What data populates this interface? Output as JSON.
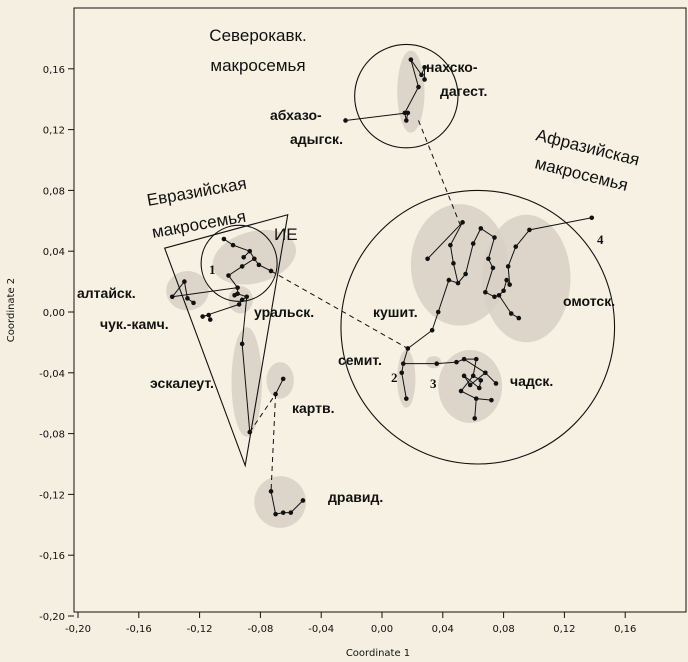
{
  "chart_data": {
    "type": "scatter",
    "xlabel": "Coordinate 1",
    "ylabel": "Coordinate 2",
    "xlim": [
      -0.2,
      0.2
    ],
    "ylim": [
      -0.2,
      0.2
    ],
    "x_ticks": [
      "-0,20",
      "-0,16",
      "-0,12",
      "-0,08",
      "-0,04",
      "0,00",
      "0,04",
      "0,08",
      "0,12",
      "0,16"
    ],
    "y_ticks": [
      "0,16",
      "0,12",
      "0,08",
      "0,04",
      "0,00",
      "-0,04",
      "-0,08",
      "-0,12",
      "-0,16",
      "-0,20"
    ],
    "x_tick_values": [
      -0.2,
      -0.16,
      -0.12,
      -0.08,
      -0.04,
      0,
      0.04,
      0.08,
      0.12,
      0.16
    ],
    "y_tick_values": [
      0.16,
      0.12,
      0.08,
      0.04,
      0,
      -0.04,
      -0.08,
      -0.12,
      -0.16,
      -0.2
    ],
    "grid": false,
    "macrofamilies": [
      {
        "label": "Северокавк. макросемья",
        "shape": "circle",
        "center": [
          0.016,
          0.142
        ],
        "radius": 0.034
      },
      {
        "label": "Афразийская макросемья",
        "shape": "circle",
        "center": [
          0.063,
          -0.01
        ],
        "radius": 0.09
      },
      {
        "label": "Евразийская макросемья",
        "shape": "triangle",
        "vertices": [
          [
            -0.143,
            0.042
          ],
          [
            -0.062,
            0.064
          ],
          [
            -0.09,
            -0.101
          ]
        ]
      },
      {
        "label": "ИЕ",
        "shape": "circle",
        "center": [
          -0.094,
          0.032
        ],
        "radius": 0.025
      }
    ],
    "families": [
      {
        "name": "нахско-дагест.",
        "points": [
          [
            0.019,
            0.166
          ],
          [
            0.026,
            0.156
          ],
          [
            0.028,
            0.161
          ],
          [
            0.028,
            0.153
          ],
          [
            0.015,
            0.131
          ],
          [
            0.016,
            0.126
          ],
          [
            0.024,
            0.148
          ]
        ]
      },
      {
        "name": "абхазо-адыгск.",
        "points": [
          [
            -0.024,
            0.126
          ],
          [
            0.017,
            0.131
          ]
        ]
      },
      {
        "name": "ИЕ",
        "points": [
          [
            -0.104,
            0.048
          ],
          [
            -0.098,
            0.044
          ],
          [
            -0.087,
            0.04
          ],
          [
            -0.084,
            0.035
          ],
          [
            -0.092,
            0.03
          ],
          [
            -0.081,
            0.031
          ],
          [
            -0.091,
            0.036
          ],
          [
            -0.073,
            0.027
          ],
          [
            -0.101,
            0.024
          ],
          [
            -0.095,
            0.016
          ]
        ]
      },
      {
        "name": "алтайск.",
        "points": [
          [
            -0.138,
            0.01
          ],
          [
            -0.13,
            0.02
          ],
          [
            -0.128,
            0.009
          ],
          [
            -0.124,
            0.006
          ]
        ]
      },
      {
        "name": "уральск.",
        "points": [
          [
            -0.095,
            0.012
          ],
          [
            -0.089,
            0.01
          ],
          [
            -0.092,
            0.008
          ],
          [
            -0.094,
            0.005
          ],
          [
            -0.097,
            0.011
          ]
        ]
      },
      {
        "name": "чук.-камч.",
        "points": [
          [
            -0.118,
            -0.003
          ],
          [
            -0.114,
            -0.002
          ],
          [
            -0.113,
            -0.005
          ]
        ]
      },
      {
        "name": "эскалеут.",
        "points": [
          [
            -0.092,
            -0.021
          ],
          [
            -0.087,
            -0.079
          ]
        ]
      },
      {
        "name": "картв.",
        "points": [
          [
            -0.07,
            -0.054
          ],
          [
            -0.065,
            -0.044
          ]
        ]
      },
      {
        "name": "дравид.",
        "points": [
          [
            -0.073,
            -0.118
          ],
          [
            -0.07,
            -0.133
          ],
          [
            -0.065,
            -0.132
          ],
          [
            -0.06,
            -0.132
          ],
          [
            -0.052,
            -0.124
          ]
        ]
      },
      {
        "name": "кушит.",
        "points": [
          [
            0.03,
            0.035
          ],
          [
            0.053,
            0.059
          ],
          [
            0.045,
            0.044
          ],
          [
            0.047,
            0.032
          ],
          [
            0.05,
            0.019
          ],
          [
            0.055,
            0.025
          ],
          [
            0.06,
            0.045
          ],
          [
            0.065,
            0.055
          ],
          [
            0.074,
            0.049
          ],
          [
            0.07,
            0.035
          ],
          [
            0.073,
            0.029
          ],
          [
            0.068,
            0.013
          ],
          [
            0.074,
            0.01
          ],
          [
            0.044,
            0.021
          ],
          [
            0.033,
            -0.012
          ],
          [
            0.037,
            0.0
          ]
        ]
      },
      {
        "name": "омотск.",
        "points": [
          [
            0.138,
            0.062
          ],
          [
            0.097,
            0.054
          ],
          [
            0.088,
            0.043
          ],
          [
            0.083,
            0.03
          ],
          [
            0.082,
            0.021
          ],
          [
            0.08,
            0.014
          ],
          [
            0.077,
            0.011
          ],
          [
            0.085,
            -0.001
          ],
          [
            0.09,
            -0.004
          ],
          [
            0.084,
            0.018
          ]
        ]
      },
      {
        "name": "семит.",
        "points": [
          [
            0.017,
            -0.024
          ],
          [
            0.014,
            -0.034
          ],
          [
            0.016,
            -0.057
          ],
          [
            0.013,
            -0.04
          ]
        ]
      },
      {
        "name": "чадск.",
        "points": [
          [
            0.036,
            -0.034
          ],
          [
            0.049,
            -0.033
          ],
          [
            0.054,
            -0.031
          ],
          [
            0.062,
            -0.031
          ],
          [
            0.06,
            -0.042
          ],
          [
            0.065,
            -0.045
          ],
          [
            0.064,
            -0.05
          ],
          [
            0.054,
            -0.042
          ],
          [
            0.058,
            -0.048
          ],
          [
            0.068,
            -0.04
          ],
          [
            0.075,
            -0.047
          ],
          [
            0.052,
            -0.052
          ],
          [
            0.062,
            -0.057
          ],
          [
            0.072,
            -0.058
          ],
          [
            0.061,
            -0.07
          ]
        ]
      }
    ],
    "labels": {
      "north_caucasus": [
        "Северокавк.",
        "макросемья"
      ],
      "afrasian": [
        "Афразийская",
        "макросемья"
      ],
      "eurasian": [
        "Евразийская",
        "макросемья"
      ],
      "ie": "ИЕ",
      "num1": "1",
      "num2": "2",
      "num3": "3",
      "num4": "4",
      "nakh": [
        "нахско-",
        "дагест."
      ],
      "abkhaz": [
        "абхазо-",
        "адыгск."
      ],
      "altai": "алтайск.",
      "chuk": "чук.-камч.",
      "ural": "уральск.",
      "eskaleut": "эскалеут.",
      "kartv": "картв.",
      "dravid": "дравид.",
      "kushit": "кушит.",
      "omot": "омотск.",
      "semit": "семит.",
      "chad": "чадск."
    },
    "colors": {
      "background": "#f4efe0",
      "plot_bg": "#f6f1e3",
      "cluster": "#d8d0c4",
      "ink": "#111111"
    }
  }
}
